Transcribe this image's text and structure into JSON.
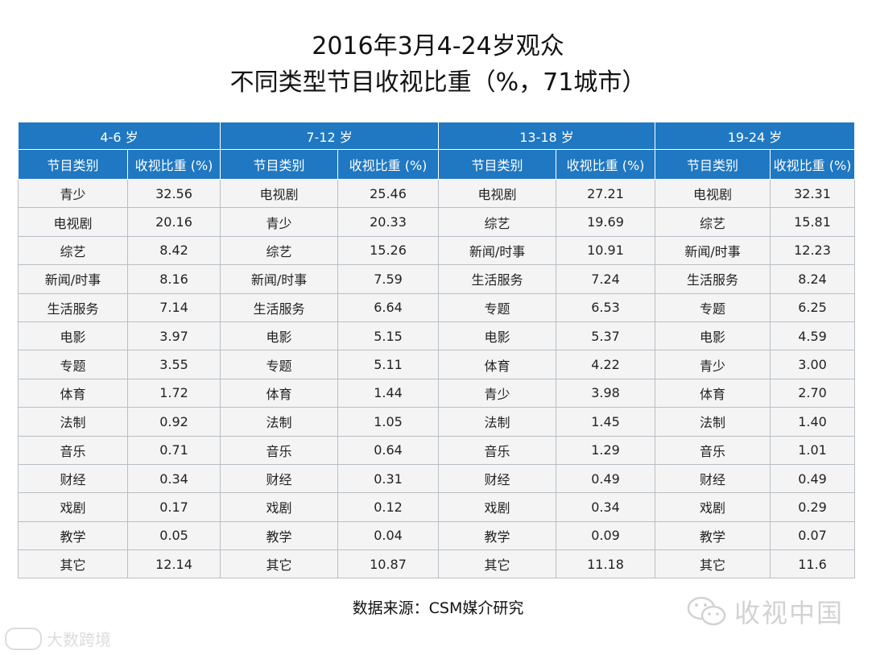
{
  "title_line1": "2016年3月4-24岁观众",
  "title_line2": "不同类型节目收视比重（%，71城市）",
  "groups": [
    "4-6 岁",
    "7-12 岁",
    "13-18 岁",
    "19-24 岁"
  ],
  "col_headers": {
    "category": "节目类别",
    "share": "收视比重 (%)"
  },
  "rows": [
    [
      [
        "青少",
        "32.56"
      ],
      [
        "电视剧",
        "25.46"
      ],
      [
        "电视剧",
        "27.21"
      ],
      [
        "电视剧",
        "32.31"
      ]
    ],
    [
      [
        "电视剧",
        "20.16"
      ],
      [
        "青少",
        "20.33"
      ],
      [
        "综艺",
        "19.69"
      ],
      [
        "综艺",
        "15.81"
      ]
    ],
    [
      [
        "综艺",
        "8.42"
      ],
      [
        "综艺",
        "15.26"
      ],
      [
        "新闻/时事",
        "10.91"
      ],
      [
        "新闻/时事",
        "12.23"
      ]
    ],
    [
      [
        "新闻/时事",
        "8.16"
      ],
      [
        "新闻/时事",
        "7.59"
      ],
      [
        "生活服务",
        "7.24"
      ],
      [
        "生活服务",
        "8.24"
      ]
    ],
    [
      [
        "生活服务",
        "7.14"
      ],
      [
        "生活服务",
        "6.64"
      ],
      [
        "专题",
        "6.53"
      ],
      [
        "专题",
        "6.25"
      ]
    ],
    [
      [
        "电影",
        "3.97"
      ],
      [
        "电影",
        "5.15"
      ],
      [
        "电影",
        "5.37"
      ],
      [
        "电影",
        "4.59"
      ]
    ],
    [
      [
        "专题",
        "3.55"
      ],
      [
        "专题",
        "5.11"
      ],
      [
        "体育",
        "4.22"
      ],
      [
        "青少",
        "3.00"
      ]
    ],
    [
      [
        "体育",
        "1.72"
      ],
      [
        "体育",
        "1.44"
      ],
      [
        "青少",
        "3.98"
      ],
      [
        "体育",
        "2.70"
      ]
    ],
    [
      [
        "法制",
        "0.92"
      ],
      [
        "法制",
        "1.05"
      ],
      [
        "法制",
        "1.45"
      ],
      [
        "法制",
        "1.40"
      ]
    ],
    [
      [
        "音乐",
        "0.71"
      ],
      [
        "音乐",
        "0.64"
      ],
      [
        "音乐",
        "1.29"
      ],
      [
        "音乐",
        "1.01"
      ]
    ],
    [
      [
        "财经",
        "0.34"
      ],
      [
        "财经",
        "0.31"
      ],
      [
        "财经",
        "0.49"
      ],
      [
        "财经",
        "0.49"
      ]
    ],
    [
      [
        "戏剧",
        "0.17"
      ],
      [
        "戏剧",
        "0.12"
      ],
      [
        "戏剧",
        "0.34"
      ],
      [
        "戏剧",
        "0.29"
      ]
    ],
    [
      [
        "教学",
        "0.05"
      ],
      [
        "教学",
        "0.04"
      ],
      [
        "教学",
        "0.09"
      ],
      [
        "教学",
        "0.07"
      ]
    ],
    [
      [
        "其它",
        "12.14"
      ],
      [
        "其它",
        "10.87"
      ],
      [
        "其它",
        "11.18"
      ],
      [
        "其它",
        "11.6"
      ]
    ]
  ],
  "source": "数据来源：CSM媒介研究",
  "watermark_right": "收视中国",
  "watermark_left": "大数跨境"
}
